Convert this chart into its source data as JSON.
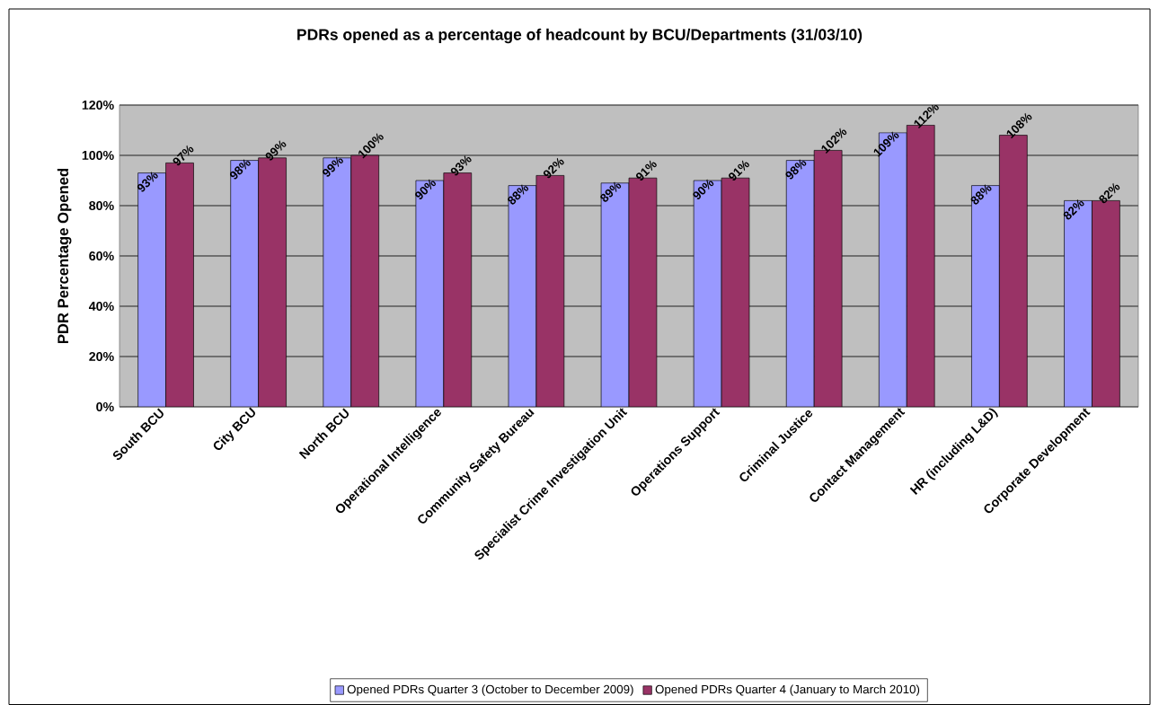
{
  "chart_data": {
    "type": "bar",
    "title": "PDRs opened as a percentage of headcount by BCU/Departments (31/03/10)",
    "ylabel": "PDR Percentage Opened",
    "categories": [
      "South BCU",
      "City BCU",
      "North BCU",
      "Operational Intelligence",
      "Community Safety Bureau",
      "Specialist Crime Investigation Unit",
      "Operations Support",
      "Criminal Justice",
      "Contact Management",
      "HR (including L&D)",
      "Corporate Development"
    ],
    "series": [
      {
        "name": "Opened PDRs Quarter 3 (October to December 2009)",
        "color": "#9999ff",
        "values": [
          93,
          98,
          99,
          90,
          88,
          89,
          90,
          98,
          109,
          88,
          82
        ],
        "value_labels": [
          "93%",
          "98%",
          "99%",
          "90%",
          "88%",
          "89%",
          "90%",
          "98%",
          "109%",
          "88%",
          "82%"
        ]
      },
      {
        "name": "Opened PDRs Quarter 4 (January to March 2010)",
        "color": "#993366",
        "values": [
          97,
          99,
          100,
          93,
          92,
          91,
          91,
          102,
          112,
          108,
          82
        ],
        "value_labels": [
          "97%",
          "99%",
          "100%",
          "93%",
          "92%",
          "91%",
          "91%",
          "102%",
          "112%",
          "108%",
          "82%"
        ]
      }
    ],
    "ylim": [
      0,
      120
    ],
    "yticks": [
      {
        "value": 0,
        "label": "0%"
      },
      {
        "value": 20,
        "label": "20%"
      },
      {
        "value": 40,
        "label": "40%"
      },
      {
        "value": 60,
        "label": "60%"
      },
      {
        "value": 80,
        "label": "80%"
      },
      {
        "value": 100,
        "label": "100%"
      },
      {
        "value": 120,
        "label": "120%"
      }
    ],
    "grid": "y",
    "legend": "bottom"
  }
}
